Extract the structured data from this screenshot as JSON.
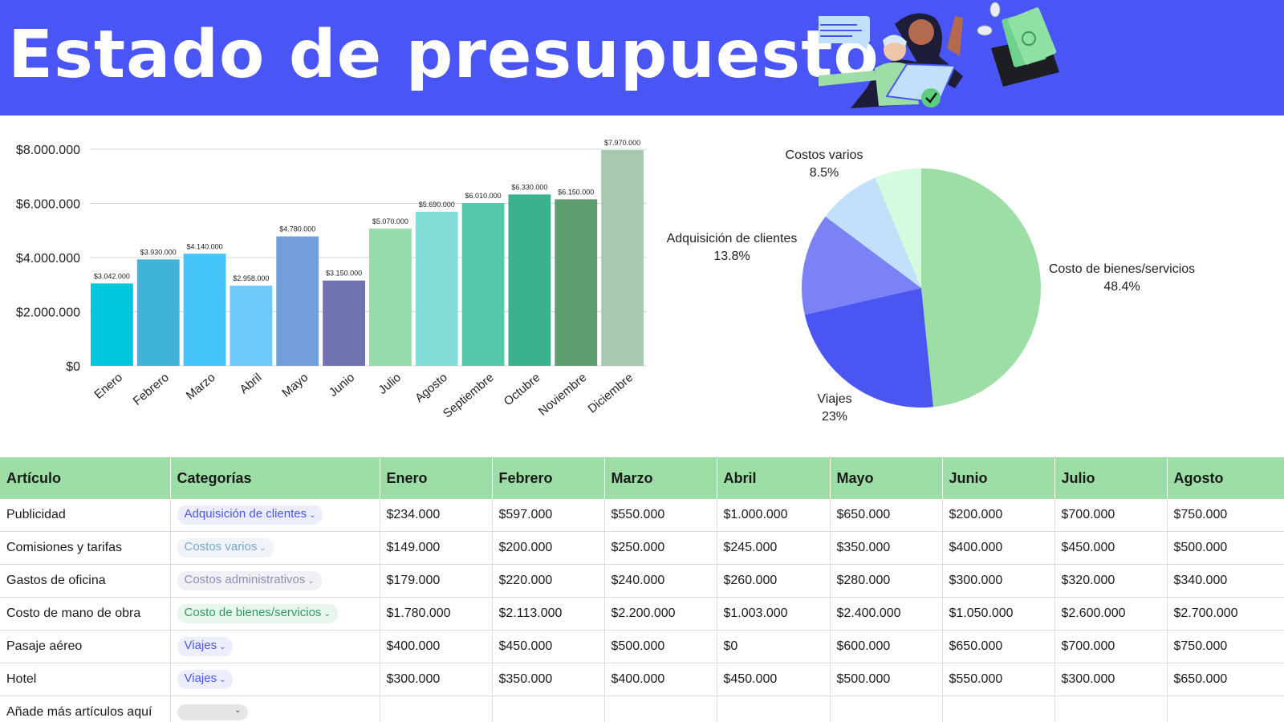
{
  "header": {
    "title": "Estado de presupuesto",
    "background_color": "#4a55f5"
  },
  "chart_data": [
    {
      "type": "bar",
      "title": "",
      "xlabel": "",
      "ylabel": "",
      "ylim": [
        0,
        8000000
      ],
      "y_ticks": [
        0,
        2000000,
        4000000,
        6000000,
        8000000
      ],
      "y_tick_labels": [
        "$0",
        "$2.000.000",
        "$4.000.000",
        "$6.000.000",
        "$8.000.000"
      ],
      "grid": true,
      "categories": [
        "Enero",
        "Febrero",
        "Marzo",
        "Abril",
        "Mayo",
        "Junio",
        "Julio",
        "Agosto",
        "Septiembre",
        "Octubre",
        "Noviembre",
        "Diciembre"
      ],
      "values": [
        3042000,
        3930000,
        4140000,
        2958000,
        4780000,
        3150000,
        5070000,
        5690000,
        6010000,
        6330000,
        6150000,
        7970000
      ],
      "value_labels": [
        "$3.042.000",
        "$3.930.000",
        "$4.140.000",
        "$2.958.000",
        "$4.780.000",
        "$3.150.000",
        "$5.070.000",
        "$5.690.000",
        "$6.010.000",
        "$6.330.000",
        "$6.150.000",
        "$7.970.000"
      ],
      "colors": [
        "#00c8dc",
        "#3fb4d8",
        "#45c4f9",
        "#6ec9fb",
        "#729fd9",
        "#6f74b1",
        "#97ddab",
        "#84ddd8",
        "#55c8ab",
        "#3ab18f",
        "#5e9d6d",
        "#a9c8b0"
      ]
    },
    {
      "type": "pie",
      "title": "",
      "slices": [
        {
          "label": "Costo de bienes/servicios",
          "value": 48.4,
          "value_label": "48.4%",
          "color": "#9ddda6"
        },
        {
          "label": "Viajes",
          "value": 23,
          "value_label": "23%",
          "color": "#4b55f2"
        },
        {
          "label": "Adquisición de clientes",
          "value": 13.8,
          "value_label": "13.8%",
          "color": "#7b82f6"
        },
        {
          "label": "Costos varios",
          "value": 8.5,
          "value_label": "8.5%",
          "color": "#c3e0fa"
        },
        {
          "label": "",
          "value": 6.3,
          "value_label": "",
          "color": "#d6fade"
        }
      ]
    }
  ],
  "table": {
    "header_color": "#9ddda6",
    "columns": [
      "Artículo",
      "Categorías",
      "Enero",
      "Febrero",
      "Marzo",
      "Abril",
      "Mayo",
      "Junio",
      "Julio",
      "Agosto"
    ],
    "rows": [
      {
        "item": "Publicidad",
        "category": "Adquisición de clientes",
        "cat_color": "#4b55f2",
        "cat_bg": "#eceefe",
        "values": [
          "$234.000",
          "$597.000",
          "$550.000",
          "$1.000.000",
          "$650.000",
          "$200.000",
          "$700.000",
          "$750.000"
        ]
      },
      {
        "item": "Comisiones y tarifas",
        "category": "Costos varios",
        "cat_color": "#7aa6cf",
        "cat_bg": "#eef4fa",
        "values": [
          "$149.000",
          "$200.000",
          "$250.000",
          "$245.000",
          "$350.000",
          "$400.000",
          "$450.000",
          "$500.000"
        ]
      },
      {
        "item": "Gastos de oficina",
        "category": "Costos administrativos",
        "cat_color": "#8f8fb5",
        "cat_bg": "#f0f0f7",
        "values": [
          "$179.000",
          "$220.000",
          "$240.000",
          "$260.000",
          "$280.000",
          "$300.000",
          "$320.000",
          "$340.000"
        ]
      },
      {
        "item": "Costo de mano de obra",
        "category": "Costo de bienes/servicios",
        "cat_color": "#2f9a66",
        "cat_bg": "#e7f7ec",
        "values": [
          "$1.780.000",
          "$2.113.000",
          "$2.200.000",
          "$1.003.000",
          "$2.400.000",
          "$1.050.000",
          "$2.600.000",
          "$2.700.000"
        ]
      },
      {
        "item": "Pasaje aéreo",
        "category": "Viajes",
        "cat_color": "#4b55f2",
        "cat_bg": "#eceefe",
        "values": [
          "$400.000",
          "$450.000",
          "$500.000",
          "$0",
          "$600.000",
          "$650.000",
          "$700.000",
          "$750.000"
        ]
      },
      {
        "item": "Hotel",
        "category": "Viajes",
        "cat_color": "#4b55f2",
        "cat_bg": "#eceefe",
        "values": [
          "$300.000",
          "$350.000",
          "$400.000",
          "$450.000",
          "$500.000",
          "$550.000",
          "$300.000",
          "$650.000"
        ]
      }
    ],
    "add_row_label": "Añade más artículos aquí"
  }
}
